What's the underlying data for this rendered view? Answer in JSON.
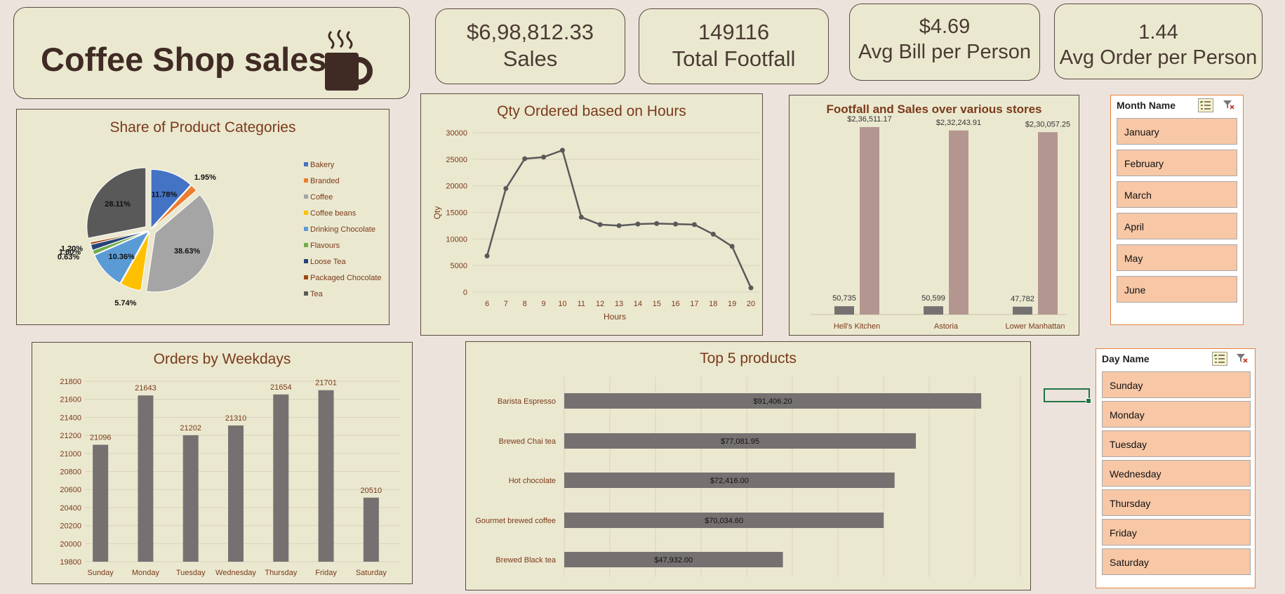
{
  "title_card": {
    "title": "Coffee Shop sales",
    "icon": "coffee-mug-icon"
  },
  "kpis": [
    {
      "value": "$6,98,812.33",
      "label": "Sales"
    },
    {
      "value": "149116",
      "label": "Total Footfall"
    },
    {
      "value": "$4.69",
      "label": "Avg Bill per Person"
    },
    {
      "value": "1.44",
      "label": "Avg Order per Person"
    }
  ],
  "colors": {
    "panel_bg": "#EBE8D0",
    "bar_gray": "#767171",
    "bar_rose": "#B49690",
    "title_brown": "#7a3a1a",
    "slicer_btn": "#F7C7A6",
    "slicer_border": "#e8823e"
  },
  "slicers": {
    "month": {
      "header": "Month Name",
      "items": [
        "January",
        "February",
        "March",
        "April",
        "May",
        "June"
      ]
    },
    "day": {
      "header": "Day Name",
      "items": [
        "Sunday",
        "Monday",
        "Tuesday",
        "Wednesday",
        "Thursday",
        "Friday",
        "Saturday"
      ]
    }
  },
  "chart_data": [
    {
      "id": "pie",
      "type": "pie",
      "title": "Share of Product Categories",
      "categories": [
        "Bakery",
        "Branded",
        "Coffee",
        "Coffee beans",
        "Drinking Chocolate",
        "Flavours",
        "Loose Tea",
        "Packaged Chocolate",
        "Tea"
      ],
      "values": [
        11.78,
        1.95,
        38.63,
        5.74,
        10.36,
        1.2,
        1.6,
        0.63,
        28.11
      ],
      "labels": [
        "11.78%",
        "1.95%",
        "38.63%",
        "5.74%",
        "10.36%",
        "1.20%",
        "1.60%",
        "0.63%",
        "28.11%"
      ],
      "colors": [
        "#4472C4",
        "#ED7D31",
        "#A5A5A5",
        "#FFC000",
        "#5B9BD5",
        "#70AD47",
        "#264478",
        "#9E480E",
        "#595959"
      ],
      "legend": "right"
    },
    {
      "id": "hours",
      "type": "line",
      "title": "Qty Ordered based on Hours",
      "xlabel": "Hours",
      "ylabel": "Qty",
      "x": [
        6,
        7,
        8,
        9,
        10,
        11,
        12,
        13,
        14,
        15,
        16,
        17,
        18,
        19,
        20
      ],
      "y": [
        6800,
        19500,
        25100,
        25400,
        26700,
        14100,
        12700,
        12500,
        12800,
        12900,
        12800,
        12700,
        10900,
        8600,
        800
      ],
      "ylim": [
        0,
        30000
      ],
      "yticks": [
        0,
        5000,
        10000,
        15000,
        20000,
        25000,
        30000
      ]
    },
    {
      "id": "stores",
      "type": "bar",
      "title": "Footfall and Sales over various stores",
      "categories": [
        "Hell's Kitchen",
        "Astoria",
        "Lower Manhattan"
      ],
      "series": [
        {
          "values": [
            50735,
            50599,
            47782
          ],
          "labels": [
            "50,735",
            "50,599",
            "47,782"
          ]
        },
        {
          "values": [
            236511.17,
            232243.91,
            230057.25
          ],
          "labels": [
            "$2,36,511.17",
            "$2,32,243.91",
            "$2,30,057.25"
          ]
        }
      ]
    },
    {
      "id": "weekdays",
      "type": "bar",
      "title": "Orders by Weekdays",
      "categories": [
        "Sunday",
        "Monday",
        "Tuesday",
        "Wednesday",
        "Thursday",
        "Friday",
        "Saturday"
      ],
      "values": [
        21096,
        21643,
        21202,
        21310,
        21654,
        21701,
        20510
      ],
      "ylim": [
        19800,
        21800
      ],
      "yticks": [
        19800,
        20000,
        20200,
        20400,
        20600,
        20800,
        21000,
        21200,
        21400,
        21600,
        21800
      ]
    },
    {
      "id": "top5",
      "type": "bar",
      "orientation": "horizontal",
      "title": "Top 5 products",
      "categories": [
        "Barista Espresso",
        "Brewed Chai tea",
        "Hot chocolate",
        "Gourmet brewed coffee",
        "Brewed Black tea"
      ],
      "values": [
        91406.2,
        77081.95,
        72416.0,
        70034.6,
        47932.0
      ],
      "labels": [
        "$91,406.20",
        "$77,081.95",
        "$72,416.00",
        "$70,034.60",
        "$47,932.00"
      ],
      "xlim": [
        0,
        100000
      ]
    }
  ]
}
